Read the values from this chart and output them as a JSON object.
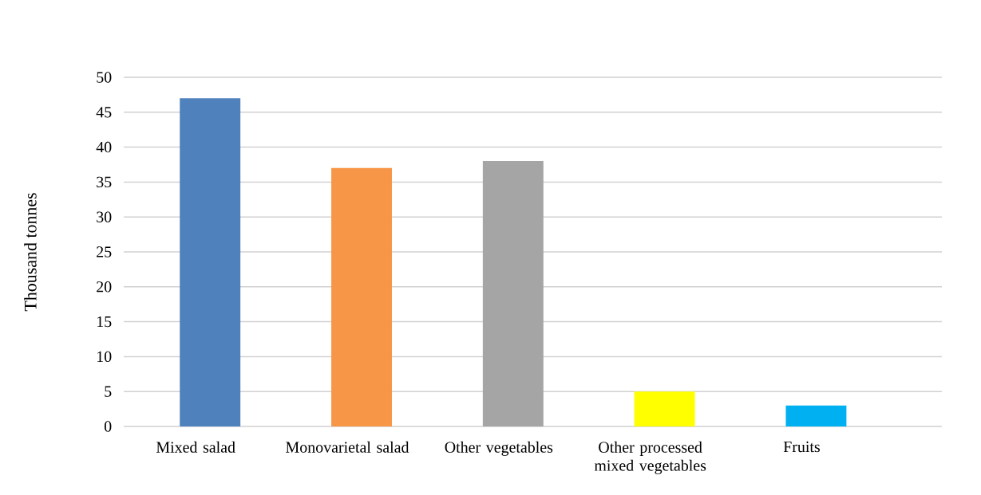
{
  "chart_data": {
    "type": "bar",
    "ylabel": "Thousand tonnes",
    "categories": [
      "Mixed salad",
      "Monovarietal salad",
      "Other vegetables",
      "Other processed mixed vegetables",
      "Fruits"
    ],
    "values": [
      47,
      37,
      38,
      5,
      3
    ],
    "colors": [
      "#4f81bd",
      "#f79646",
      "#a5a5a5",
      "#ffff00",
      "#00b0f0"
    ],
    "ylim": [
      0,
      50
    ],
    "yticks": [
      0,
      5,
      10,
      15,
      20,
      25,
      30,
      35,
      40,
      45,
      50
    ],
    "grid": "y"
  }
}
